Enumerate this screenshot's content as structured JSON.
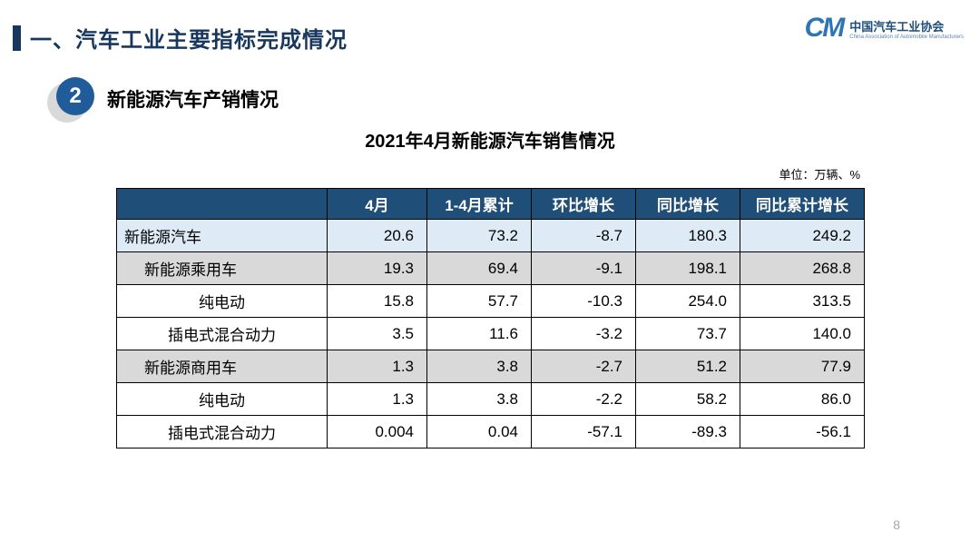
{
  "slide": {
    "section_title": "一、汽车工业主要指标完成情况",
    "badge_number": "2",
    "subsection_title": "新能源汽车产销情况",
    "table_title": "2021年4月新能源汽车销售情况",
    "unit_note": "单位：万辆、%",
    "page_number": "8"
  },
  "logo": {
    "mark": "CM",
    "org_name_cn": "中国汽车工业协会",
    "org_name_en": "China Association of Automobile Manufacturers"
  },
  "colors": {
    "header_bg": "#1f4e79",
    "row_blue": "#deebf7",
    "row_gray": "#d9d9d9",
    "title_navy": "#17375e",
    "badge_blue": "#1f5c99"
  },
  "chart_data": {
    "type": "table",
    "title": "2021年4月新能源汽车销售情况",
    "unit": "单位：万辆、%",
    "columns": [
      "",
      "4月",
      "1-4月累计",
      "环比增长",
      "同比增长",
      "同比累计增长"
    ],
    "rows": [
      {
        "label": "新能源汽车",
        "indent": 0,
        "style": "highlight-blue",
        "values": [
          "20.6",
          "73.2",
          "-8.7",
          "180.3",
          "249.2"
        ]
      },
      {
        "label": "新能源乘用车",
        "indent": 1,
        "style": "highlight-gray",
        "values": [
          "19.3",
          "69.4",
          "-9.1",
          "198.1",
          "268.8"
        ]
      },
      {
        "label": "纯电动",
        "indent": 2,
        "style": "plain",
        "values": [
          "15.8",
          "57.7",
          "-10.3",
          "254.0",
          "313.5"
        ]
      },
      {
        "label": "插电式混合动力",
        "indent": 2,
        "style": "plain",
        "values": [
          "3.5",
          "11.6",
          "-3.2",
          "73.7",
          "140.0"
        ]
      },
      {
        "label": "新能源商用车",
        "indent": 1,
        "style": "highlight-gray",
        "values": [
          "1.3",
          "3.8",
          "-2.7",
          "51.2",
          "77.9"
        ]
      },
      {
        "label": "纯电动",
        "indent": 2,
        "style": "plain",
        "values": [
          "1.3",
          "3.8",
          "-2.2",
          "58.2",
          "86.0"
        ]
      },
      {
        "label": "插电式混合动力",
        "indent": 2,
        "style": "plain",
        "values": [
          "0.004",
          "0.04",
          "-57.1",
          "-89.3",
          "-56.1"
        ]
      }
    ]
  }
}
